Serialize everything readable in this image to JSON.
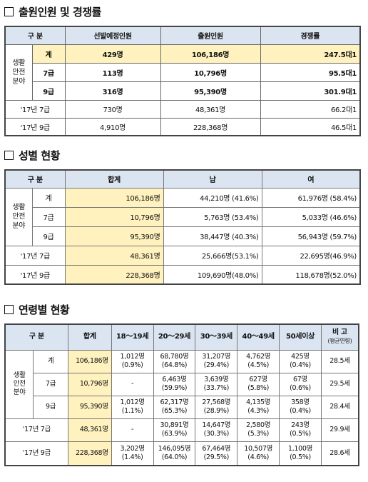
{
  "section1": {
    "title": "출원인원 및 경쟁률",
    "headers": [
      "구 분",
      "선발예정인원",
      "출원인원",
      "경쟁률"
    ],
    "group_label": "생활\n안전\n분야",
    "rows": [
      {
        "label": "계",
        "plan": "429명",
        "applicants": "106,186명",
        "ratio": "247.5대1"
      },
      {
        "label": "7급",
        "plan": "113명",
        "applicants": "10,796명",
        "ratio": "95.5대1"
      },
      {
        "label": "9급",
        "plan": "316명",
        "applicants": "95,390명",
        "ratio": "301.9대1"
      },
      {
        "label": "'17년 7급",
        "plan": "730명",
        "applicants": "48,361명",
        "ratio": "66.2대1"
      },
      {
        "label": "'17년 9급",
        "plan": "4,910명",
        "applicants": "228,368명",
        "ratio": "46.5대1"
      }
    ]
  },
  "section2": {
    "title": "성별 현황",
    "headers": [
      "구 분",
      "합계",
      "남",
      "여"
    ],
    "group_label": "생활\n안전\n분야",
    "rows": [
      {
        "label": "계",
        "total": "106,186명",
        "male": "44,210명 (41.6%)",
        "female": "61,976명 (58.4%)"
      },
      {
        "label": "7급",
        "total": "10,796명",
        "male": "5,763명 (53.4%)",
        "female": "5,033명 (46.6%)"
      },
      {
        "label": "9급",
        "total": "95,390명",
        "male": "38,447명 (40.3%)",
        "female": "56,943명 (59.7%)"
      },
      {
        "label": "'17년 7급",
        "total": "48,361명",
        "male": "25,666명(53.1%)",
        "female": "22,695명(46.9%)"
      },
      {
        "label": "'17년 9급",
        "total": "228,368명",
        "male": "109,690명(48.0%)",
        "female": "118,678명(52.0%)"
      }
    ]
  },
  "section3": {
    "title": "연령별 현황",
    "headers": [
      "구 분",
      "합계",
      "18～19세",
      "20～29세",
      "30～39세",
      "40～49세",
      "50세이상",
      "비 고"
    ],
    "note_sub": "(평균연령)",
    "group_label": "생활\n안전\n분야",
    "rows": [
      {
        "label": "계",
        "total": "106,186명",
        "a18": [
          "1,012명",
          "(0.9%)"
        ],
        "a20": [
          "68,780명",
          "(64.8%)"
        ],
        "a30": [
          "31,207명",
          "(29.4%)"
        ],
        "a40": [
          "4,762명",
          "(4.5%)"
        ],
        "a50": [
          "425명",
          "(0.4%)"
        ],
        "avg": "28.5세"
      },
      {
        "label": "7급",
        "total": "10,796명",
        "a18": [
          "-",
          ""
        ],
        "a20": [
          "6,463명",
          "(59.9%)"
        ],
        "a30": [
          "3,639명",
          "(33.7%)"
        ],
        "a40": [
          "627명",
          "(5.8%)"
        ],
        "a50": [
          "67명",
          "(0.6%)"
        ],
        "avg": "29.5세"
      },
      {
        "label": "9급",
        "total": "95,390명",
        "a18": [
          "1,012명",
          "(1.1%)"
        ],
        "a20": [
          "62,317명",
          "(65.3%)"
        ],
        "a30": [
          "27,568명",
          "(28.9%)"
        ],
        "a40": [
          "4,135명",
          "(4.3%)"
        ],
        "a50": [
          "358명",
          "(0.4%)"
        ],
        "avg": "28.4세"
      },
      {
        "label": "'17년 7급",
        "total": "48,361명",
        "a18": [
          "-",
          ""
        ],
        "a20": [
          "30,891명",
          "(63.9%)"
        ],
        "a30": [
          "14,647명",
          "(30.3%)"
        ],
        "a40": [
          "2,580명",
          "(5.3%)"
        ],
        "a50": [
          "243명",
          "(0.5%)"
        ],
        "avg": "29.9세"
      },
      {
        "label": "'17년 9급",
        "total": "228,368명",
        "a18": [
          "3,202명",
          "(1.4%)"
        ],
        "a20": [
          "146,095명",
          "(64.0%)"
        ],
        "a30": [
          "67,464명",
          "(29.5%)"
        ],
        "a40": [
          "10,507명",
          "(4.6%)"
        ],
        "a50": [
          "1,100명",
          "(0.5%)"
        ],
        "avg": "28.6세"
      }
    ]
  }
}
